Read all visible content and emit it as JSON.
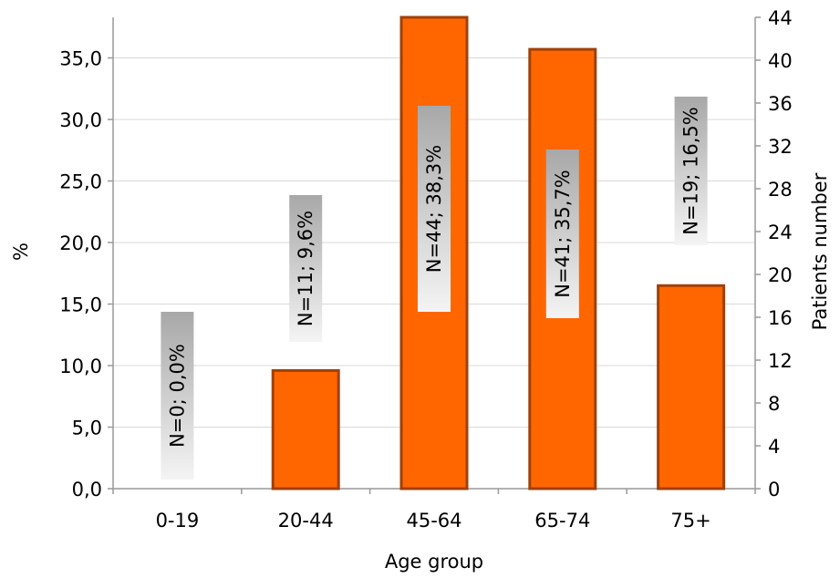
{
  "chart_data": {
    "type": "bar",
    "categories": [
      "0-19",
      "20-44",
      "45-64",
      "65-74",
      "75+"
    ],
    "values": [
      0.0,
      9.6,
      38.3,
      35.7,
      16.5
    ],
    "counts": [
      0,
      11,
      44,
      41,
      19
    ],
    "data_labels": [
      "N=0; 0,0%",
      "N=11; 9,6%",
      "N=44; 38,3%",
      "N=41; 35,7%",
      "N=19; 16,5%"
    ],
    "xlabel": "Age group",
    "ylabel": "%",
    "y2label": "Patients number",
    "ylim": [
      0,
      38.3
    ],
    "y2lim": [
      0,
      44
    ],
    "y_ticks": [
      "0,0",
      "5,0",
      "10,0",
      "15,0",
      "20,0",
      "25,0",
      "30,0",
      "35,0"
    ],
    "y_tick_values": [
      0,
      5,
      10,
      15,
      20,
      25,
      30,
      35
    ],
    "y2_ticks": [
      "0",
      "4",
      "8",
      "12",
      "16",
      "20",
      "24",
      "28",
      "32",
      "36",
      "40",
      "44"
    ],
    "y2_tick_values": [
      0,
      4,
      8,
      12,
      16,
      20,
      24,
      28,
      32,
      36,
      40,
      44
    ],
    "grid": true,
    "colors": {
      "bar_fill": "#FF6600",
      "bar_stroke": "#A0400A",
      "label_box_dark": "#A8A8A8",
      "label_box_light": "#F4F4F4",
      "axis": "#999999",
      "grid": "#D9D9D9"
    }
  }
}
